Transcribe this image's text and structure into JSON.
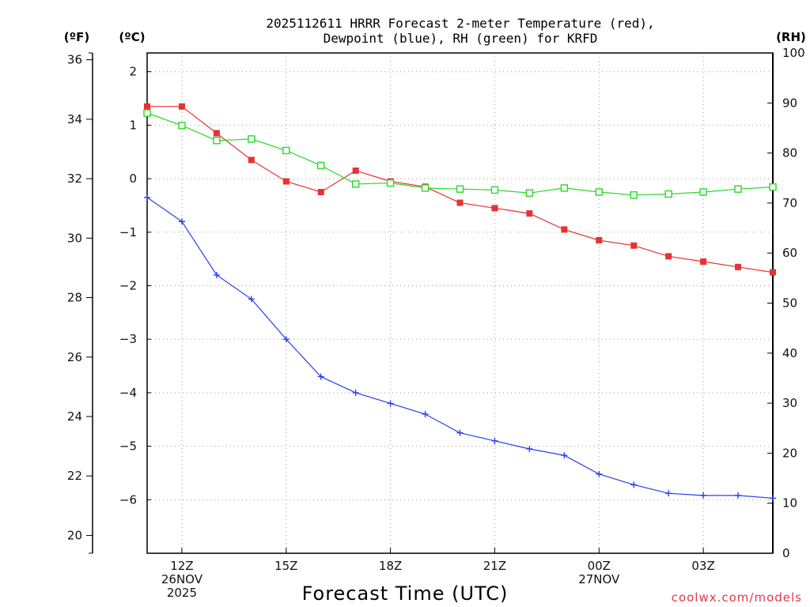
{
  "chart_data": {
    "type": "line",
    "title_line1": "2025112611 HRRR Forecast 2-meter Temperature (red),",
    "title_line2": "Dewpoint (blue), RH (green) for KRFD",
    "xlabel": "Forecast Time (UTC)",
    "credit": "coolwx.com/models",
    "x": [
      11,
      12,
      13,
      14,
      15,
      16,
      17,
      18,
      19,
      20,
      21,
      22,
      23,
      24,
      25,
      26,
      27,
      28,
      29
    ],
    "xlim": [
      11,
      29
    ],
    "x_ticks": [
      {
        "x": 12,
        "lines": [
          "12Z",
          "26NOV",
          "2025"
        ]
      },
      {
        "x": 15,
        "lines": [
          "15Z"
        ]
      },
      {
        "x": 18,
        "lines": [
          "18Z"
        ]
      },
      {
        "x": 21,
        "lines": [
          "21Z"
        ]
      },
      {
        "x": 24,
        "lines": [
          "00Z",
          "27NOV"
        ]
      },
      {
        "x": 27,
        "lines": [
          "03Z"
        ]
      }
    ],
    "axes": {
      "celsius": {
        "label": "(ºC)",
        "range": [
          -7,
          2.35
        ],
        "ticks": [
          2,
          1,
          0,
          -1,
          -2,
          -3,
          -4,
          -5,
          -6
        ],
        "tick_labels": [
          "2",
          "1",
          "0",
          "−1",
          "−2",
          "−3",
          "−4",
          "−5",
          "−6"
        ]
      },
      "fahrenheit": {
        "label": "(ºF)",
        "range": [
          19.4,
          36.23
        ],
        "ticks": [
          36,
          34,
          32,
          30,
          28,
          26,
          24,
          22,
          20
        ],
        "tick_labels": [
          "36",
          "34",
          "32",
          "30",
          "28",
          "26",
          "24",
          "22",
          "20"
        ]
      },
      "rh": {
        "label": "(RH)",
        "range": [
          0,
          100
        ],
        "ticks": [
          100,
          90,
          80,
          70,
          60,
          50,
          40,
          30,
          20,
          10,
          0
        ],
        "tick_labels": [
          "100",
          "90",
          "80",
          "70",
          "60",
          "50",
          "40",
          "30",
          "20",
          "10",
          "0"
        ]
      }
    },
    "series": [
      {
        "name": "Temperature",
        "unit": "C",
        "color": "#e63232",
        "marker": "filled-square",
        "values": [
          1.35,
          1.35,
          0.85,
          0.35,
          -0.05,
          -0.25,
          0.15,
          -0.05,
          -0.15,
          -0.45,
          -0.55,
          -0.65,
          -0.95,
          -1.15,
          -1.25,
          -1.45,
          -1.55,
          -1.65,
          -1.75
        ]
      },
      {
        "name": "Dewpoint",
        "unit": "C",
        "color": "#2a3ff0",
        "marker": "plus",
        "values": [
          -0.35,
          -0.8,
          -1.8,
          -2.25,
          -3.0,
          -3.7,
          -4.0,
          -4.2,
          -4.4,
          -4.75,
          -4.9,
          -5.05,
          -5.17,
          -5.52,
          -5.72,
          -5.88,
          -5.92,
          -5.92,
          -5.97
        ]
      },
      {
        "name": "RH",
        "unit": "%",
        "color": "#2ad82a",
        "marker": "open-square",
        "values": [
          88,
          85.5,
          82.5,
          82.8,
          80.5,
          77.5,
          73.8,
          74,
          73,
          72.8,
          72.6,
          72,
          73,
          72.2,
          71.6,
          71.8,
          72.2,
          72.8,
          73.2
        ]
      }
    ]
  }
}
